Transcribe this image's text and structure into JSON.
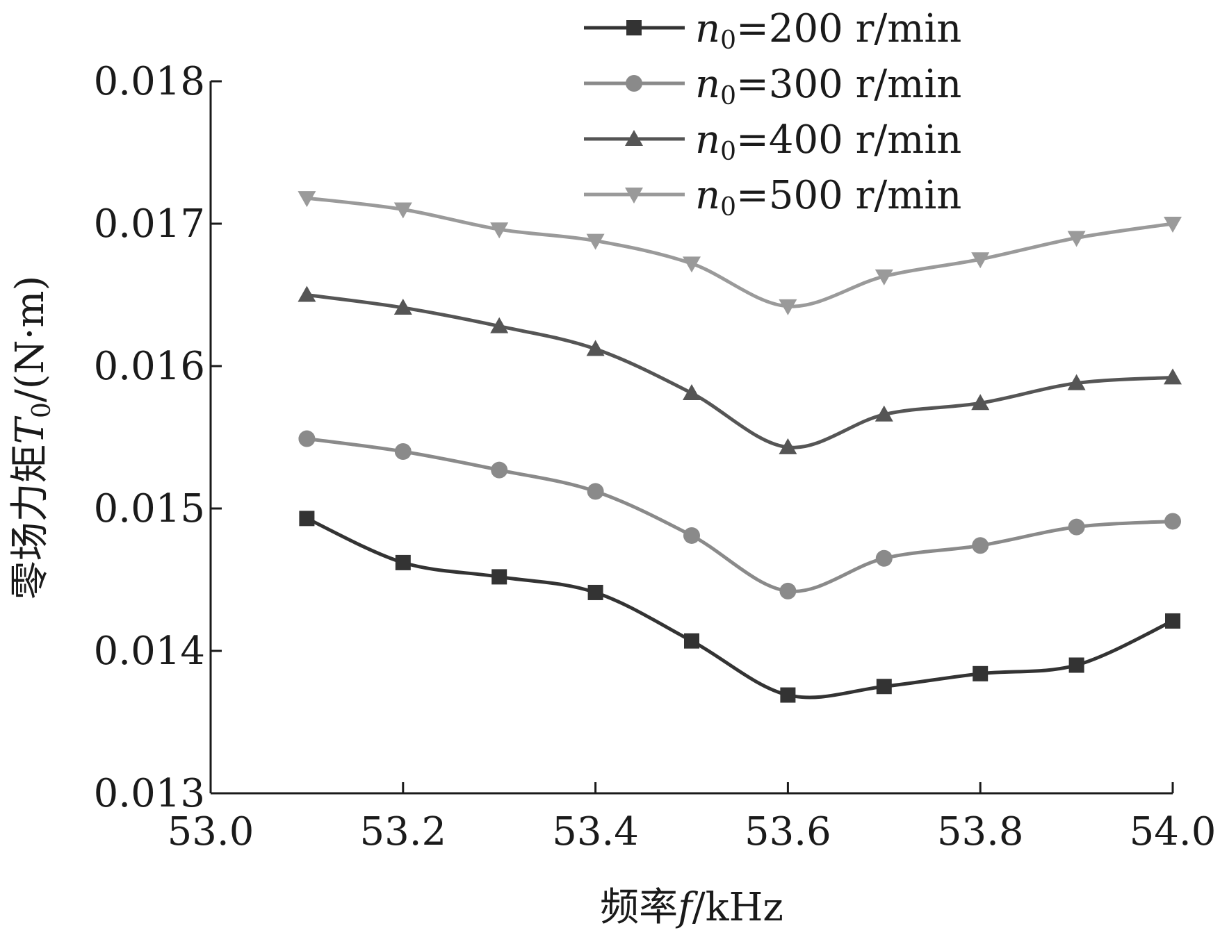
{
  "chart_data": {
    "type": "line",
    "title": "",
    "xlabel_prefix": "频率",
    "xlabel_symbol": "f",
    "xlabel_unit": "/kHz",
    "ylabel_prefix": "零场力矩",
    "ylabel_symbol": "T",
    "ylabel_subscript": "0",
    "ylabel_unit": "/(N·m)",
    "xlim": [
      53.0,
      54.0
    ],
    "ylim": [
      0.013,
      0.018
    ],
    "x_ticks": [
      "53.0",
      "53.2",
      "53.4",
      "53.6",
      "53.8",
      "54.0"
    ],
    "y_ticks": [
      "0.013",
      "0.014",
      "0.015",
      "0.016",
      "0.017",
      "0.018"
    ],
    "grid": false,
    "legend_position": "top-right",
    "x": [
      53.1,
      53.2,
      53.3,
      53.4,
      53.5,
      53.6,
      53.7,
      53.8,
      53.9,
      54.0
    ],
    "series": [
      {
        "legend_symbol": "n",
        "legend_subscript": "0",
        "legend_value": "=200 r/min",
        "marker": "square",
        "color": "#333333",
        "values": [
          0.01493,
          0.01462,
          0.01452,
          0.01441,
          0.01407,
          0.01369,
          0.01375,
          0.01384,
          0.0139,
          0.01421
        ]
      },
      {
        "legend_symbol": "n",
        "legend_subscript": "0",
        "legend_value": "=300 r/min",
        "marker": "circle",
        "color": "#8a8a8a",
        "values": [
          0.01549,
          0.0154,
          0.01527,
          0.01512,
          0.01481,
          0.01442,
          0.01465,
          0.01474,
          0.01487,
          0.01491
        ]
      },
      {
        "legend_symbol": "n",
        "legend_subscript": "0",
        "legend_value": "=400 r/min",
        "marker": "triangle-up",
        "color": "#555555",
        "values": [
          0.0165,
          0.01641,
          0.01628,
          0.01612,
          0.01581,
          0.01543,
          0.01566,
          0.01574,
          0.01588,
          0.01592
        ]
      },
      {
        "legend_symbol": "n",
        "legend_subscript": "0",
        "legend_value": "=500 r/min",
        "marker": "triangle-down",
        "color": "#9a9a9a",
        "values": [
          0.01718,
          0.0171,
          0.01696,
          0.01688,
          0.01672,
          0.01642,
          0.01663,
          0.01675,
          0.0169,
          0.017
        ]
      }
    ]
  }
}
